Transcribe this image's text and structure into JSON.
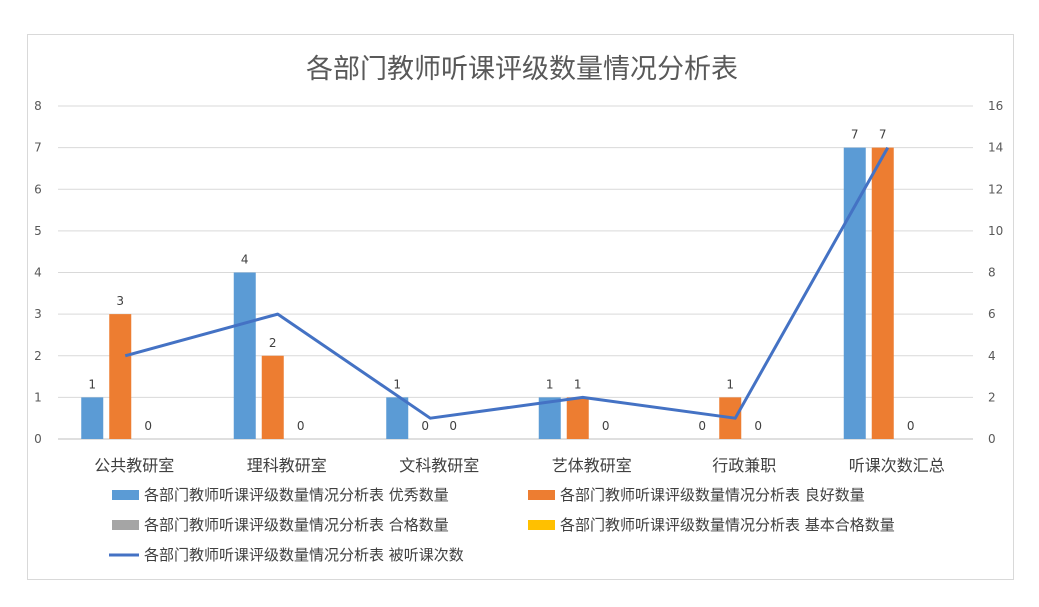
{
  "chart_data": {
    "type": "bar",
    "title": "各部门教师听课评级数量情况分析表",
    "categories": [
      "公共教研室",
      "理科教研室",
      "文科教研室",
      "艺体教研室",
      "行政兼职",
      "听课次数汇总"
    ],
    "y_left": {
      "ylim": [
        0,
        8
      ],
      "ticks": [
        "0",
        "1",
        "2",
        "3",
        "4",
        "5",
        "6",
        "7",
        "8"
      ]
    },
    "y_right": {
      "ylim": [
        0,
        16
      ],
      "ticks": [
        "0",
        "2",
        "4",
        "6",
        "8",
        "10",
        "12",
        "14",
        "16"
      ]
    },
    "grid": true,
    "legend_position": "bottom",
    "series": [
      {
        "name": "各部门教师听课评级数量情况分析表 优秀数量",
        "kind": "bar",
        "axis": "left",
        "color": "#5B9BD5",
        "values": [
          1,
          4,
          1,
          1,
          0,
          7
        ]
      },
      {
        "name": "各部门教师听课评级数量情况分析表 良好数量",
        "kind": "bar",
        "axis": "left",
        "color": "#ED7D31",
        "values": [
          3,
          2,
          0,
          1,
          1,
          7
        ]
      },
      {
        "name": "各部门教师听课评级数量情况分析表 合格数量",
        "kind": "bar",
        "axis": "left",
        "color": "#A5A5A5",
        "values": [
          0,
          0,
          0,
          0,
          0,
          0
        ]
      },
      {
        "name": "各部门教师听课评级数量情况分析表 基本合格数量",
        "kind": "bar",
        "axis": "left",
        "color": "#FFC000",
        "values": [
          null,
          null,
          null,
          null,
          null,
          null
        ]
      },
      {
        "name": "各部门教师听课评级数量情况分析表 被听课次数",
        "kind": "line",
        "axis": "right",
        "color": "#4472C4",
        "values": [
          4,
          6,
          1,
          2,
          1,
          14
        ]
      }
    ]
  }
}
